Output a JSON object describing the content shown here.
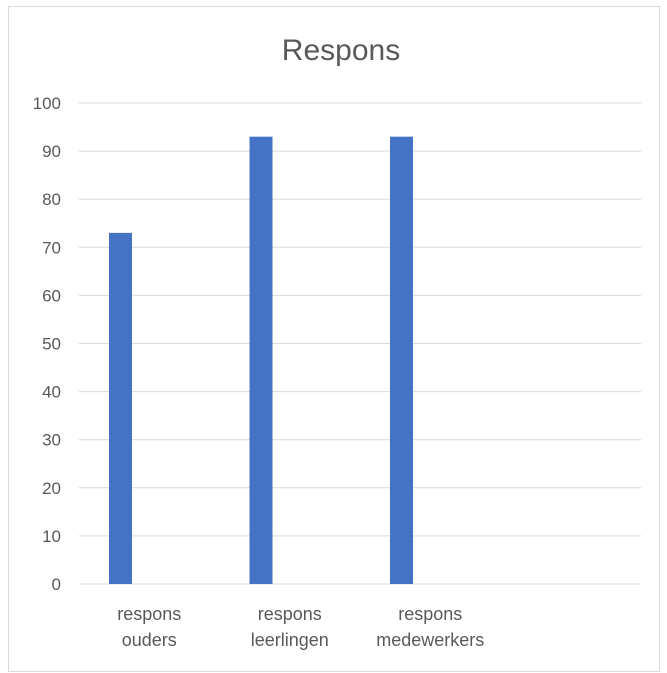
{
  "chart_data": {
    "type": "bar",
    "title": "Respons",
    "xlabel": "",
    "ylabel": "",
    "categories": [
      [
        "respons",
        "ouders"
      ],
      [
        "respons",
        "leerlingen"
      ],
      [
        "respons",
        "medewerkers"
      ],
      [
        ""
      ]
    ],
    "values": [
      73,
      93,
      93,
      null
    ],
    "ylim": [
      0,
      100
    ],
    "yticks": [
      "0",
      "10",
      "20",
      "30",
      "40",
      "50",
      "60",
      "70",
      "80",
      "90",
      "100"
    ],
    "grid": true,
    "legend": "none",
    "bar_color": "#4472c4"
  }
}
